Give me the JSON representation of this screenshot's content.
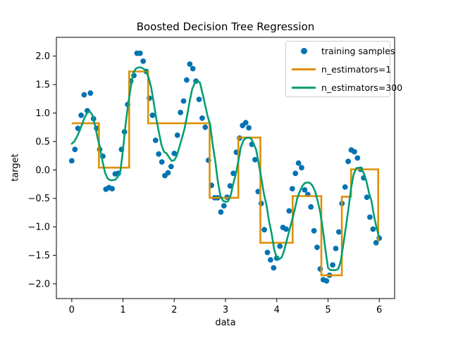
{
  "chart_data": {
    "type": "scatter",
    "title": "Boosted Decision Tree Regression",
    "xlabel": "data",
    "ylabel": "target",
    "xlim": [
      -0.3,
      6.3
    ],
    "ylim": [
      -2.26,
      2.33
    ],
    "grid": false,
    "legend_position": "upper right",
    "colors": {
      "training_samples": "#0173b2",
      "n_estimators_1": "#de8f05",
      "n_estimators_300": "#029e73",
      "axis": "#000000",
      "legend_border": "#cccccc"
    },
    "xticks": {
      "values": [
        0,
        1,
        2,
        3,
        4,
        5,
        6
      ],
      "labels": [
        "0",
        "1",
        "2",
        "3",
        "4",
        "5",
        "6"
      ]
    },
    "yticks": {
      "values": [
        -2.0,
        -1.5,
        -1.0,
        -0.5,
        0.0,
        0.5,
        1.0,
        1.5,
        2.0
      ],
      "labels": [
        "−2.0",
        "−1.5",
        "−1.0",
        "−0.5",
        "0.0",
        "0.5",
        "1.0",
        "1.5",
        "2.0"
      ]
    },
    "legend_entries": [
      {
        "label": "training samples",
        "handle": "marker",
        "color": "#0173b2"
      },
      {
        "label": "n_estimators=1",
        "handle": "line",
        "color": "#de8f05"
      },
      {
        "label": "n_estimators=300",
        "handle": "line",
        "color": "#029e73"
      }
    ],
    "series": [
      {
        "name": "training samples",
        "type": "scatter",
        "color": "#0173b2",
        "marker_radius": 3.9,
        "x": [
          0.0,
          0.061,
          0.121,
          0.182,
          0.242,
          0.303,
          0.364,
          0.424,
          0.485,
          0.545,
          0.606,
          0.667,
          0.727,
          0.788,
          0.848,
          0.909,
          0.97,
          1.03,
          1.091,
          1.152,
          1.212,
          1.273,
          1.333,
          1.394,
          1.455,
          1.515,
          1.576,
          1.636,
          1.697,
          1.758,
          1.818,
          1.879,
          1.939,
          2.0,
          2.061,
          2.121,
          2.182,
          2.242,
          2.303,
          2.364,
          2.424,
          2.485,
          2.545,
          2.606,
          2.667,
          2.727,
          2.788,
          2.848,
          2.909,
          2.97,
          3.03,
          3.091,
          3.152,
          3.212,
          3.273,
          3.333,
          3.394,
          3.455,
          3.515,
          3.576,
          3.636,
          3.697,
          3.758,
          3.818,
          3.879,
          3.939,
          4.0,
          4.061,
          4.121,
          4.182,
          4.242,
          4.303,
          4.364,
          4.424,
          4.485,
          4.545,
          4.606,
          4.667,
          4.727,
          4.788,
          4.848,
          4.909,
          4.97,
          5.03,
          5.091,
          5.152,
          5.212,
          5.273,
          5.333,
          5.394,
          5.455,
          5.515,
          5.576,
          5.636,
          5.697,
          5.758,
          5.818,
          5.879,
          5.939,
          6.0
        ],
        "y": [
          0.16,
          0.36,
          0.73,
          0.96,
          1.32,
          1.04,
          1.35,
          0.9,
          0.73,
          0.36,
          0.24,
          -0.34,
          -0.31,
          -0.33,
          -0.07,
          -0.06,
          0.36,
          0.67,
          1.15,
          1.56,
          1.66,
          2.05,
          2.05,
          1.91,
          1.73,
          1.26,
          0.96,
          0.52,
          0.28,
          0.14,
          -0.1,
          -0.05,
          0.06,
          0.29,
          0.61,
          1.01,
          1.21,
          1.58,
          1.86,
          1.78,
          1.56,
          1.24,
          0.91,
          0.75,
          0.17,
          -0.27,
          -0.49,
          -0.49,
          -0.74,
          -0.63,
          -0.48,
          -0.28,
          -0.06,
          0.31,
          0.56,
          0.78,
          0.83,
          0.74,
          0.45,
          0.18,
          -0.38,
          -0.59,
          -1.05,
          -1.45,
          -1.58,
          -1.72,
          -1.55,
          -1.34,
          -1.01,
          -1.04,
          -0.72,
          -0.33,
          -0.06,
          0.12,
          0.04,
          -0.35,
          -0.43,
          -0.65,
          -1.07,
          -1.36,
          -1.74,
          -1.93,
          -1.95,
          -1.85,
          -1.67,
          -1.38,
          -1.09,
          -0.59,
          -0.3,
          0.15,
          0.35,
          0.32,
          0.21,
          0.01,
          -0.14,
          -0.48,
          -0.83,
          -1.04,
          -1.28,
          -1.2
        ]
      },
      {
        "name": "n_estimators=1",
        "type": "step",
        "color": "#de8f05",
        "linewidth": 2.6,
        "segments": [
          [
            0.0,
            0.53,
            0.82
          ],
          [
            0.53,
            1.12,
            0.04
          ],
          [
            1.12,
            1.49,
            1.73
          ],
          [
            1.49,
            2.69,
            0.82
          ],
          [
            2.69,
            3.25,
            -0.49
          ],
          [
            3.25,
            3.68,
            0.57
          ],
          [
            3.68,
            4.31,
            -1.28
          ],
          [
            4.31,
            4.87,
            -0.46
          ],
          [
            4.87,
            5.27,
            -1.85
          ],
          [
            5.27,
            5.45,
            -0.47
          ],
          [
            5.45,
            5.98,
            0.01
          ],
          [
            5.98,
            6.0,
            -1.24
          ]
        ]
      },
      {
        "name": "n_estimators=300",
        "type": "line",
        "color": "#029e73",
        "linewidth": 2.6,
        "x_start": 0,
        "x_step": 0.05,
        "y": [
          0.46,
          0.5,
          0.58,
          0.68,
          0.8,
          0.92,
          1.0,
          1.03,
          0.97,
          0.8,
          0.58,
          0.4,
          0.15,
          -0.05,
          -0.15,
          -0.18,
          -0.18,
          -0.17,
          -0.12,
          -0.02,
          0.35,
          0.8,
          1.15,
          1.45,
          1.7,
          1.78,
          1.8,
          1.8,
          1.78,
          1.74,
          1.62,
          1.45,
          1.18,
          0.9,
          0.66,
          0.44,
          0.32,
          0.29,
          0.22,
          0.16,
          0.17,
          0.25,
          0.4,
          0.56,
          0.72,
          0.95,
          1.2,
          1.42,
          1.53,
          1.56,
          1.54,
          1.35,
          1.15,
          0.95,
          0.8,
          0.45,
          0.15,
          -0.2,
          -0.45,
          -0.54,
          -0.56,
          -0.55,
          -0.45,
          -0.25,
          -0.08,
          0.15,
          0.4,
          0.52,
          0.56,
          0.57,
          0.55,
          0.46,
          0.35,
          0.1,
          -0.15,
          -0.42,
          -0.62,
          -0.9,
          -1.12,
          -1.4,
          -1.54,
          -1.57,
          -1.53,
          -1.4,
          -1.22,
          -1.05,
          -0.88,
          -0.7,
          -0.5,
          -0.38,
          -0.28,
          -0.23,
          -0.22,
          -0.23,
          -0.28,
          -0.38,
          -0.55,
          -0.75,
          -1.05,
          -1.4,
          -1.72,
          -1.76,
          -1.76,
          -1.76,
          -1.74,
          -1.6,
          -1.3,
          -1.0,
          -0.68,
          -0.32,
          -0.08,
          0.03,
          0.04,
          0.02,
          -0.06,
          -0.2,
          -0.4,
          -0.55,
          -0.82,
          -1.02,
          -1.19
        ]
      }
    ]
  }
}
